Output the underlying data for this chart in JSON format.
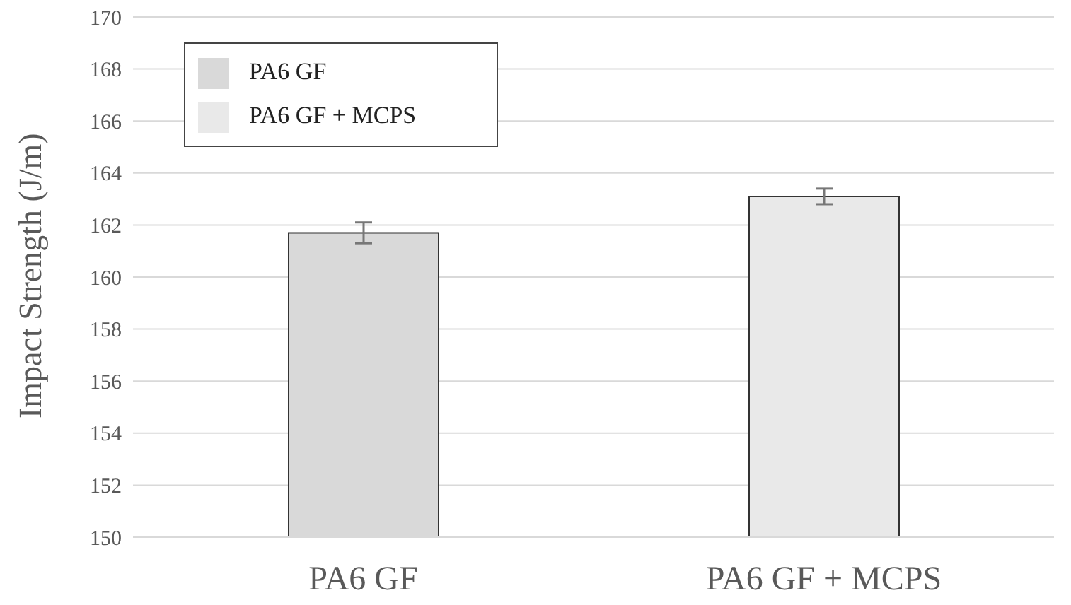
{
  "chart_data": {
    "type": "bar",
    "ylabel": "Impact Strength (J/m)",
    "categories": [
      "PA6 GF",
      "PA6 GF + MCPS"
    ],
    "series": [
      {
        "name": "PA6 GF",
        "color": "#d9d9d9",
        "values": [
          161.7,
          null
        ],
        "errors": [
          0.4,
          null
        ]
      },
      {
        "name": "PA6 GF + MCPS",
        "color": "#e9e9e9",
        "values": [
          null,
          163.1
        ],
        "errors": [
          null,
          0.3
        ]
      }
    ],
    "ylim": [
      150,
      170
    ],
    "yticks": [
      150,
      152,
      154,
      156,
      158,
      160,
      162,
      164,
      166,
      168,
      170
    ],
    "grid": "y",
    "legend": "top left"
  }
}
